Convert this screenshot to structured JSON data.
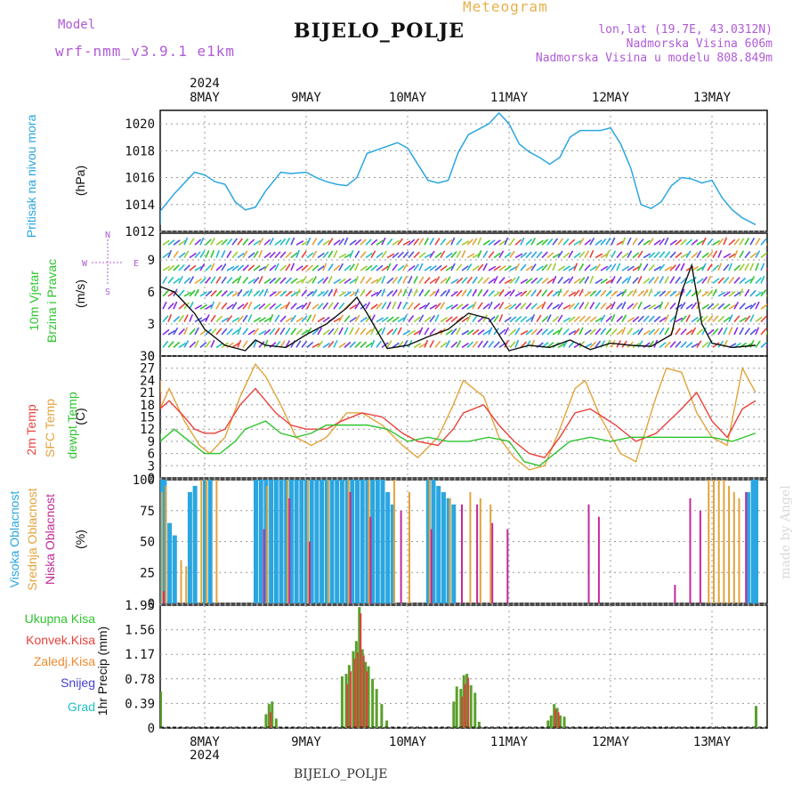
{
  "header": {
    "model_label": "Model",
    "model_value": "wrf-nmm_v3.9.1  e1km",
    "station": "BIJELO_POLJE",
    "meteogram": "Meteogram",
    "lonlat": "lon,lat (19.7E, 43.0312N)",
    "altitude": "Nadmorska Visina 606m",
    "model_altitude": "Nadmorska Visina u modelu 808.849m"
  },
  "top_axis": {
    "year": "2024",
    "days": [
      "8MAY",
      "9MAY",
      "10MAY",
      "11MAY",
      "12MAY",
      "13MAY"
    ]
  },
  "bottom_axis": {
    "year": "2024",
    "days": [
      "8MAY",
      "9MAY",
      "10MAY",
      "11MAY",
      "12MAY",
      "13MAY"
    ],
    "station": "BIJELO_POLJE"
  },
  "credit": "made by Angel",
  "panels": {
    "pressure": {
      "title": "Pritisak na nivou mora",
      "unit": "(hPa)",
      "ticks": [
        "1012",
        "1014",
        "1016",
        "1018",
        "1020"
      ]
    },
    "wind": {
      "title1": "10m Vjetar",
      "title2": "Brzina i Pravac",
      "unit": "(m/s)",
      "ticks": [
        "0",
        "3",
        "6",
        "9"
      ],
      "compass": {
        "n": "N",
        "s": "S",
        "w": "W",
        "e": "E"
      }
    },
    "temp": {
      "t1": "2m Temp",
      "t2": "SFC Temp",
      "t3": "dewpt Temp",
      "unit": "(C)",
      "ticks": [
        "0",
        "3",
        "6",
        "9",
        "12",
        "15",
        "18",
        "21",
        "24",
        "27",
        "30"
      ]
    },
    "cloud": {
      "t1": "Visoka Oblacnost",
      "t2": "Srednja Oblacnost",
      "t3": "Niska Oblacnost",
      "unit": "(%)",
      "ticks": [
        "0",
        "25",
        "50",
        "75",
        "100"
      ]
    },
    "precip": {
      "unit": "1hr Precip (mm)",
      "ticks": [
        "0",
        "0.39",
        "0.78",
        "1.17",
        "1.56",
        "1.95"
      ],
      "legend": [
        "Ukupna Kisa",
        "Konvek.Kisa",
        "Zaledj.Kisa",
        "Snijeg",
        "Grad"
      ]
    }
  },
  "colors": {
    "pressure": "#2aa6e0",
    "t2m": "#e8413c",
    "sfc": "#e3a33a",
    "dewpt": "#2fc42f",
    "cloud_high": "#2aa6e0",
    "cloud_mid": "#e3a33a",
    "cloud_low": "#c22a9a",
    "precip_total": "#5aa02c",
    "precip_conv": "#e04040",
    "precip_frz": "#f08a30",
    "snow": "#4040d0",
    "hail": "#20c0c0"
  },
  "chart_data": [
    {
      "type": "line",
      "title": "Pritisak na nivou mora",
      "ylabel": "(hPa)",
      "ylim": [
        1012,
        1021
      ],
      "x_unit": "days from 8MAY 00UTC",
      "series": [
        {
          "name": "Pritisak na nivou mora",
          "x": [
            -0.57,
            -0.45,
            -0.3,
            -0.1,
            0.0,
            0.1,
            0.2,
            0.3,
            0.4,
            0.5,
            0.6,
            0.75,
            0.85,
            1.0,
            1.1,
            1.2,
            1.3,
            1.4,
            1.5,
            1.6,
            1.75,
            1.9,
            2.0,
            2.1,
            2.2,
            2.3,
            2.4,
            2.5,
            2.6,
            2.7,
            2.8,
            2.9,
            3.0,
            3.1,
            3.2,
            3.3,
            3.4,
            3.5,
            3.6,
            3.7,
            3.8,
            3.9,
            4.0,
            4.1,
            4.2,
            4.3,
            4.4,
            4.5,
            4.6,
            4.7,
            4.8,
            4.9,
            5.0,
            5.1,
            5.2,
            5.3,
            5.43
          ],
          "values": [
            1012.5,
            1013.5,
            1014.8,
            1016.4,
            1016.2,
            1015.7,
            1015.5,
            1014.2,
            1013.6,
            1013.8,
            1015.0,
            1016.4,
            1016.3,
            1016.4,
            1016.0,
            1015.7,
            1015.5,
            1015.4,
            1016.0,
            1017.8,
            1018.2,
            1018.6,
            1018.2,
            1017.0,
            1015.8,
            1015.6,
            1015.8,
            1017.9,
            1019.2,
            1019.6,
            1020.0,
            1020.8,
            1020.0,
            1018.5,
            1017.9,
            1017.5,
            1017.0,
            1017.5,
            1019.0,
            1019.5,
            1019.5,
            1019.5,
            1019.7,
            1018.5,
            1016.7,
            1014.0,
            1013.7,
            1014.2,
            1015.4,
            1016.0,
            1015.9,
            1015.6,
            1015.8,
            1014.5,
            1013.6,
            1013.0,
            1012.5
          ]
        }
      ]
    },
    {
      "type": "line",
      "title": "10m Vjetar Brzina i Pravac",
      "ylabel": "(m/s)",
      "ylim": [
        0,
        11.5
      ],
      "x_unit": "days from 8MAY 00UTC",
      "series": [
        {
          "name": "10m Vjetar",
          "x": [
            -0.57,
            -0.45,
            -0.3,
            -0.2,
            -0.1,
            0.0,
            0.2,
            0.4,
            0.5,
            0.6,
            0.8,
            1.0,
            1.2,
            1.4,
            1.5,
            1.6,
            1.8,
            2.0,
            2.2,
            2.4,
            2.6,
            2.8,
            3.0,
            3.2,
            3.4,
            3.6,
            3.8,
            4.0,
            4.2,
            4.4,
            4.6,
            4.7,
            4.8,
            4.9,
            5.0,
            5.2,
            5.43
          ],
          "values": [
            5.0,
            6.5,
            6.0,
            5.0,
            4.0,
            2.5,
            1.0,
            0.5,
            1.5,
            1.0,
            0.8,
            2.0,
            3.0,
            4.5,
            5.5,
            4.0,
            0.7,
            1.0,
            1.8,
            2.5,
            4.0,
            3.5,
            0.5,
            1.0,
            0.8,
            1.5,
            0.6,
            1.2,
            1.0,
            0.9,
            2.0,
            6.0,
            8.5,
            3.0,
            1.2,
            0.8,
            1.0
          ]
        }
      ]
    },
    {
      "type": "line",
      "title": "2m Temp / SFC Temp / dewpt Temp",
      "ylabel": "(C)",
      "ylim": [
        0,
        30
      ],
      "x_unit": "days from 8MAY 00UTC",
      "series": [
        {
          "name": "2m Temp",
          "x": [
            -0.57,
            -0.45,
            -0.35,
            -0.2,
            -0.1,
            0.0,
            0.1,
            0.2,
            0.35,
            0.5,
            0.6,
            0.7,
            0.85,
            1.0,
            1.2,
            1.35,
            1.55,
            1.75,
            1.95,
            2.1,
            2.3,
            2.45,
            2.55,
            2.75,
            2.9,
            3.05,
            3.2,
            3.35,
            3.5,
            3.65,
            3.8,
            4.05,
            4.25,
            4.45,
            4.7,
            4.85,
            5.0,
            5.15,
            5.3,
            5.43
          ],
          "values": [
            21,
            17,
            19,
            15,
            12,
            11,
            11,
            12,
            18,
            22,
            19,
            16,
            13,
            12,
            12,
            14,
            16,
            15,
            11,
            9,
            8,
            12,
            16,
            18,
            13,
            9,
            6,
            5,
            10,
            16,
            17,
            13,
            9,
            11,
            17,
            21,
            14,
            10,
            17,
            19
          ]
        },
        {
          "name": "SFC Temp",
          "x": [
            -0.57,
            -0.45,
            -0.35,
            -0.2,
            -0.05,
            0.05,
            0.2,
            0.35,
            0.5,
            0.6,
            0.75,
            0.9,
            1.05,
            1.2,
            1.4,
            1.55,
            1.75,
            1.95,
            2.1,
            2.3,
            2.45,
            2.55,
            2.75,
            2.9,
            3.05,
            3.2,
            3.35,
            3.5,
            3.65,
            3.75,
            3.9,
            4.1,
            4.25,
            4.45,
            4.55,
            4.7,
            4.85,
            5.0,
            5.15,
            5.3,
            5.43
          ],
          "values": [
            24,
            17,
            22,
            14,
            8,
            6,
            10,
            20,
            28,
            25,
            18,
            10,
            8,
            10,
            16,
            16,
            13,
            8,
            5,
            10,
            18,
            24,
            20,
            10,
            5,
            2,
            3,
            12,
            22,
            24,
            15,
            6,
            4,
            20,
            27,
            26,
            16,
            10,
            8,
            27,
            21
          ]
        },
        {
          "name": "dewpt Temp",
          "x": [
            -0.57,
            -0.45,
            -0.3,
            -0.15,
            0.0,
            0.15,
            0.3,
            0.4,
            0.5,
            0.6,
            0.75,
            0.9,
            1.05,
            1.2,
            1.4,
            1.6,
            1.8,
            2.0,
            2.2,
            2.4,
            2.6,
            2.8,
            3.0,
            3.15,
            3.3,
            3.45,
            3.6,
            3.8,
            4.0,
            4.2,
            4.4,
            4.6,
            4.8,
            5.0,
            5.2,
            5.43
          ],
          "values": [
            11,
            9,
            12,
            9,
            6,
            6,
            9,
            12,
            13,
            14,
            11,
            10,
            11,
            13,
            13,
            13,
            12,
            9,
            10,
            9,
            9,
            10,
            9,
            4,
            3,
            6,
            9,
            10,
            9,
            10,
            10,
            10,
            10,
            10,
            9,
            11
          ]
        }
      ]
    },
    {
      "type": "bar",
      "title": "Visoka / Srednja / Niska Oblacnost",
      "ylabel": "(%)",
      "ylim": [
        0,
        100
      ],
      "x_unit": "days from 8MAY 00UTC",
      "series": [
        {
          "name": "Visoka Oblacnost",
          "x": [
            -0.55,
            -0.5,
            -0.45,
            -0.4,
            -0.35,
            -0.3,
            -0.15,
            -0.1,
            0.0,
            0.05,
            0.5,
            0.55,
            0.6,
            0.65,
            0.7,
            0.75,
            0.8,
            0.85,
            0.9,
            0.95,
            1.0,
            1.05,
            1.1,
            1.15,
            1.2,
            1.25,
            1.3,
            1.35,
            1.4,
            1.45,
            1.5,
            1.55,
            1.6,
            1.65,
            1.7,
            1.75,
            1.8,
            1.85,
            2.2,
            2.25,
            2.3,
            2.35,
            2.4,
            2.45,
            5.35,
            5.4,
            5.43
          ],
          "values": [
            95,
            100,
            100,
            100,
            65,
            55,
            90,
            95,
            100,
            100,
            100,
            100,
            100,
            100,
            100,
            100,
            100,
            100,
            100,
            100,
            100,
            100,
            100,
            100,
            100,
            100,
            100,
            100,
            100,
            100,
            100,
            100,
            100,
            100,
            100,
            100,
            90,
            80,
            100,
            100,
            95,
            90,
            85,
            80,
            90,
            100,
            100
          ]
        },
        {
          "name": "Srednja Oblacnost",
          "x": [
            -0.55,
            -0.4,
            -0.25,
            -0.2,
            -0.05,
            0.0,
            0.1,
            0.6,
            0.8,
            1.0,
            1.2,
            1.4,
            1.6,
            1.85,
            2.0,
            2.2,
            2.4,
            2.6,
            2.7,
            2.8,
            4.95,
            5.0,
            5.05,
            5.1,
            5.15,
            5.2,
            5.25
          ],
          "values": [
            90,
            95,
            35,
            30,
            100,
            100,
            100,
            95,
            100,
            100,
            100,
            100,
            100,
            100,
            90,
            100,
            85,
            90,
            85,
            80,
            100,
            100,
            100,
            100,
            95,
            90,
            85
          ]
        },
        {
          "name": "Niska Oblacnost",
          "x": [
            -0.5,
            0.55,
            0.8,
            1.0,
            1.4,
            1.6,
            1.9,
            2.2,
            2.5,
            2.65,
            2.8,
            2.95,
            3.75,
            3.85,
            4.6,
            4.75,
            4.85,
            5.3
          ],
          "values": [
            10,
            60,
            85,
            50,
            90,
            70,
            75,
            60,
            80,
            80,
            65,
            60,
            80,
            70,
            15,
            85,
            75,
            90
          ]
        }
      ]
    },
    {
      "type": "bar",
      "title": "1hr Precip",
      "ylabel": "1hr Precip (mm)",
      "ylim": [
        0,
        1.95
      ],
      "x_unit": "days from 8MAY 00UTC",
      "series": [
        {
          "name": "Ukupna Kisa",
          "x": [
            -0.55,
            0.6,
            0.63,
            0.66,
            0.7,
            1.35,
            1.39,
            1.42,
            1.46,
            1.49,
            1.52,
            1.55,
            1.58,
            1.61,
            1.65,
            1.69,
            1.74,
            1.79,
            2.45,
            2.48,
            2.52,
            2.55,
            2.58,
            2.62,
            2.66,
            2.7,
            3.38,
            3.41,
            3.44,
            3.47,
            3.5,
            3.54,
            5.43
          ],
          "values": [
            0.58,
            0.22,
            0.38,
            0.42,
            0.15,
            0.82,
            0.86,
            1.0,
            1.22,
            1.38,
            1.92,
            1.25,
            1.05,
            0.98,
            0.78,
            0.62,
            0.38,
            0.12,
            0.42,
            0.66,
            0.62,
            0.84,
            0.86,
            0.68,
            0.56,
            0.1,
            0.12,
            0.2,
            0.38,
            0.32,
            0.2,
            0.18,
            0.35
          ]
        },
        {
          "name": "Konvek.Kisa",
          "x": [
            0.63,
            1.39,
            1.42,
            1.46,
            1.49,
            1.52,
            1.55,
            1.58,
            2.52,
            2.55,
            2.58,
            3.44,
            3.47
          ],
          "values": [
            0.25,
            0.7,
            0.9,
            1.1,
            1.2,
            1.82,
            1.15,
            0.9,
            0.5,
            0.7,
            0.8,
            0.3,
            0.25
          ]
        }
      ]
    }
  ]
}
